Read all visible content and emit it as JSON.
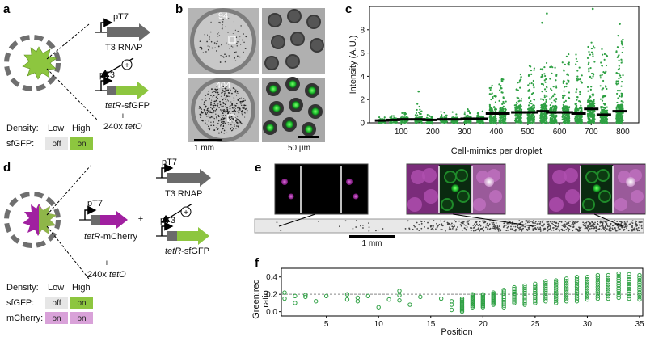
{
  "panels": {
    "a": {
      "label": "a",
      "promoter_top": "pT7",
      "gene_top": "T3 RNAP",
      "plus_circle": "+",
      "promoter_bottom": "pT3",
      "gene_bottom_italic": "tetR",
      "gene_bottom_rest": "-sfGFP",
      "plus": "+",
      "operator_prefix": "240x ",
      "operator_italic": "tetO",
      "density_label": "Density:",
      "low": "Low",
      "high": "High",
      "sfgfp_label": "sfGFP:",
      "sfgfp_low": "off",
      "sfgfp_high": "on"
    },
    "b": {
      "label": "b",
      "count_top": "94",
      "count_bottom": "404",
      "scale_left": "1 mm",
      "scale_right": "50 µm"
    },
    "c": {
      "label": "c"
    },
    "d": {
      "label": "d",
      "promoter_top": "pT7",
      "gene_top": "T3 RNAP",
      "plus_circle": "+",
      "promoter_left": "pT7",
      "gene_left_italic": "tetR",
      "gene_left_rest": "-mCherry",
      "plus_mid": "+",
      "promoter_bottom": "pT3",
      "gene_bottom_italic": "tetR",
      "gene_bottom_rest": "-sfGFP",
      "plus": "+",
      "operator_prefix": "240x ",
      "operator_italic": "tetO",
      "density_label": "Density:",
      "low": "Low",
      "high": "High",
      "sfgfp_label": "sfGFP:",
      "sfgfp_low": "off",
      "sfgfp_high": "on",
      "mcherry_label": "mCherry:",
      "mcherry_low": "on",
      "mcherry_high": "on"
    },
    "e": {
      "label": "e",
      "scale": "1 mm"
    },
    "f": {
      "label": "f"
    }
  },
  "colors": {
    "green": "#2ea043",
    "lime": "#8dc63f",
    "magenta": "#a020a0",
    "gray_dark": "#6b6b6b",
    "pill_off": "#e6e6e6",
    "pill_on_green": "#8dc63f",
    "pill_on_mcherry": "#d9a2d9"
  },
  "chart_data": [
    {
      "type": "scatter",
      "panel": "c",
      "ylabel": "Intensity (A.U.)",
      "xlabel": "Cell-mimics per droplet",
      "xlim": [
        0,
        850
      ],
      "ylim": [
        0,
        10
      ],
      "xticks": [
        100,
        200,
        300,
        400,
        500,
        600,
        700,
        800
      ],
      "yticks": [
        0,
        2,
        4,
        6,
        8
      ],
      "groups": [
        {
          "x": 40,
          "median": 0.2,
          "max": 0.5
        },
        {
          "x": 75,
          "median": 0.25,
          "max": 0.6
        },
        {
          "x": 110,
          "median": 0.3,
          "max": 0.9
        },
        {
          "x": 155,
          "median": 0.3,
          "max": 1.8
        },
        {
          "x": 190,
          "median": 0.25,
          "max": 0.8
        },
        {
          "x": 235,
          "median": 0.3,
          "max": 1.0
        },
        {
          "x": 270,
          "median": 0.3,
          "max": 1.0
        },
        {
          "x": 310,
          "median": 0.35,
          "max": 1.2
        },
        {
          "x": 350,
          "median": 0.35,
          "max": 1.4
        },
        {
          "x": 390,
          "median": 0.8,
          "max": 3.5
        },
        {
          "x": 420,
          "median": 0.8,
          "max": 3.8
        },
        {
          "x": 470,
          "median": 0.9,
          "max": 4.5
        },
        {
          "x": 510,
          "median": 0.9,
          "max": 5.0
        },
        {
          "x": 550,
          "median": 1.0,
          "max": 5.2
        },
        {
          "x": 580,
          "median": 0.9,
          "max": 5.0
        },
        {
          "x": 620,
          "median": 0.9,
          "max": 6.0
        },
        {
          "x": 660,
          "median": 0.8,
          "max": 6.5
        },
        {
          "x": 700,
          "median": 1.2,
          "max": 7.5
        },
        {
          "x": 740,
          "median": 0.7,
          "max": 6.5
        },
        {
          "x": 790,
          "median": 1.0,
          "max": 7.5
        }
      ],
      "outliers": [
        {
          "x": 155,
          "y": 2.7
        },
        {
          "x": 560,
          "y": 9.4
        },
        {
          "x": 545,
          "y": 8.6
        },
        {
          "x": 705,
          "y": 9.8
        },
        {
          "x": 790,
          "y": 8.5
        }
      ]
    },
    {
      "type": "scatter",
      "panel": "f",
      "ylabel": "Green:red ratio",
      "xlabel": "Position",
      "xlim": [
        1,
        35
      ],
      "ylim": [
        -0.05,
        0.5
      ],
      "xticks": [
        5,
        10,
        15,
        20,
        25,
        30,
        35
      ],
      "yticks": [
        0.0,
        0.2,
        0.4
      ],
      "reference_line": 0.2,
      "points": [
        {
          "x": 1,
          "y": 0.15
        },
        {
          "x": 1,
          "y": 0.22
        },
        {
          "x": 2,
          "y": 0.1
        },
        {
          "x": 2,
          "y": 0.18
        },
        {
          "x": 3,
          "y": 0.17
        },
        {
          "x": 3,
          "y": 0.19
        },
        {
          "x": 4,
          "y": 0.12
        },
        {
          "x": 5,
          "y": 0.18
        },
        {
          "x": 7,
          "y": 0.14
        },
        {
          "x": 7,
          "y": 0.2
        },
        {
          "x": 8,
          "y": 0.16
        },
        {
          "x": 8,
          "y": 0.12
        },
        {
          "x": 9,
          "y": 0.18
        },
        {
          "x": 10,
          "y": 0.05
        },
        {
          "x": 11,
          "y": 0.14
        },
        {
          "x": 12,
          "y": 0.19
        },
        {
          "x": 12,
          "y": 0.13
        },
        {
          "x": 12,
          "y": 0.24
        },
        {
          "x": 13,
          "y": 0.08
        },
        {
          "x": 14,
          "y": 0.17
        },
        {
          "x": 16,
          "y": 0.15
        },
        {
          "x": 17,
          "y": 0.02
        },
        {
          "x": 17,
          "y": 0.08
        },
        {
          "x": 17,
          "y": 0.12
        }
      ],
      "bands": [
        {
          "x": 18,
          "lo": 0.0,
          "hi": 0.15
        },
        {
          "x": 19,
          "lo": 0.05,
          "hi": 0.2
        },
        {
          "x": 20,
          "lo": 0.05,
          "hi": 0.2
        },
        {
          "x": 21,
          "lo": 0.08,
          "hi": 0.22
        },
        {
          "x": 22,
          "lo": 0.05,
          "hi": 0.25
        },
        {
          "x": 23,
          "lo": 0.1,
          "hi": 0.28
        },
        {
          "x": 24,
          "lo": 0.08,
          "hi": 0.3
        },
        {
          "x": 25,
          "lo": 0.1,
          "hi": 0.32
        },
        {
          "x": 26,
          "lo": 0.12,
          "hi": 0.35
        },
        {
          "x": 27,
          "lo": 0.1,
          "hi": 0.36
        },
        {
          "x": 28,
          "lo": 0.12,
          "hi": 0.38
        },
        {
          "x": 29,
          "lo": 0.12,
          "hi": 0.4
        },
        {
          "x": 30,
          "lo": 0.14,
          "hi": 0.4
        },
        {
          "x": 31,
          "lo": 0.15,
          "hi": 0.42
        },
        {
          "x": 32,
          "lo": 0.15,
          "hi": 0.42
        },
        {
          "x": 33,
          "lo": 0.16,
          "hi": 0.44
        },
        {
          "x": 34,
          "lo": 0.15,
          "hi": 0.43
        },
        {
          "x": 35,
          "lo": 0.14,
          "hi": 0.42
        }
      ]
    }
  ]
}
